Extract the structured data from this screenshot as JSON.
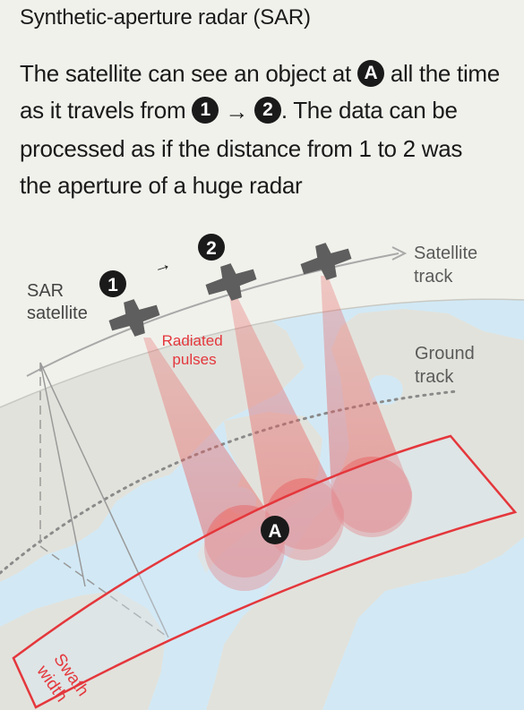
{
  "title": "Synthetic-aperture radar (SAR)",
  "description": {
    "line1_prefix": "The satellite can see an object at",
    "object_marker": "A",
    "line1_suffix": "all the time",
    "line2_prefix": "as it travels from",
    "position_1": "1",
    "arrow": "→",
    "position_2": "2",
    "line2_suffix": ". The data can be",
    "line3": "processed as if the distance from 1 to 2 was",
    "line4": "the aperture of a huge radar"
  },
  "diagram": {
    "sar_satellite_label": [
      "SAR",
      "satellite"
    ],
    "satellite_track_label": [
      "Satellite",
      "track"
    ],
    "ground_track_label": [
      "Ground",
      "track"
    ],
    "radiated_pulses_label": [
      "Radiated",
      "pulses"
    ],
    "swath_width_label": [
      "Swath",
      "width"
    ],
    "marker_1": "1",
    "marker_2": "2",
    "marker_a": "A",
    "motion_arrow": "→",
    "colors": {
      "background": "#f1f1ec",
      "land": "#e2e2dc",
      "water": "#d2e9f5",
      "pulse": "#e85a5a",
      "swath": "#e4373c",
      "track": "#a9a9a9",
      "marker": "#1a1a1a",
      "satellite": "#5e5e5e"
    }
  }
}
